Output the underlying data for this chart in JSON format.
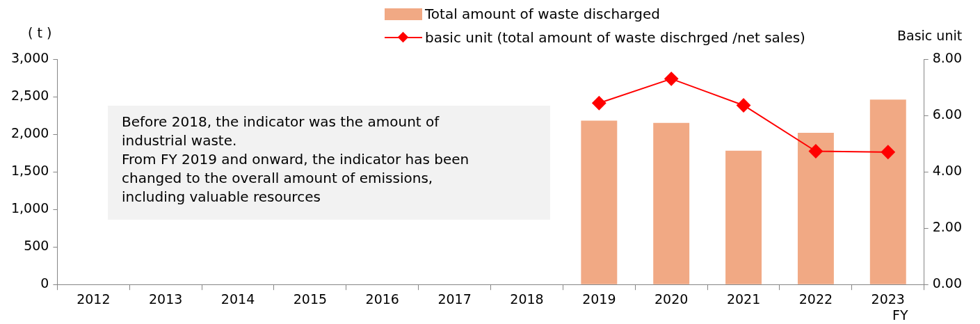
{
  "chart_data": {
    "type": "bar",
    "ylabel": "( t )",
    "y2label": "Basic unit",
    "xlabel": "FY",
    "categories": [
      "2012",
      "2013",
      "2014",
      "2015",
      "2016",
      "2017",
      "2018",
      "2019",
      "2020",
      "2021",
      "2022",
      "2023"
    ],
    "series": [
      {
        "name": "Total amount of waste discharged",
        "color": "#f1a984",
        "values": [
          null,
          null,
          null,
          null,
          null,
          null,
          null,
          2180,
          2150,
          1780,
          2020,
          2460
        ]
      },
      {
        "name": "basic unit (total amount of waste dischrged /net sales)",
        "type": "line",
        "axis": "y2",
        "color": "#ff0000",
        "marker": "diamond",
        "line_style": "solid",
        "values": [
          null,
          null,
          null,
          null,
          null,
          null,
          null,
          6.44,
          7.3,
          6.36,
          4.73,
          4.7
        ]
      }
    ],
    "ylim": [
      0,
      3000
    ],
    "yticks": [
      0,
      {
        "value": 500,
        "label": "500"
      },
      {
        "value": 1000,
        "label": "1,000"
      },
      {
        "value": 1500,
        "label": "1,500"
      },
      {
        "value": 2000,
        "label": "2,000"
      },
      {
        "value": 2500,
        "label": "2,500"
      },
      {
        "value": 3000,
        "label": "3,000"
      }
    ],
    "y2lim": [
      0,
      8
    ],
    "y2ticks": [
      {
        "value": 0,
        "label": "0.00"
      },
      {
        "value": 2,
        "label": "2.00"
      },
      {
        "value": 4,
        "label": "4.00"
      },
      {
        "value": 6,
        "label": "6.00"
      },
      {
        "value": 8,
        "label": "8.00"
      }
    ],
    "grid": false,
    "legend": "top",
    "annotations": [
      "Before 2018, the indicator was the amount of\nindustrial waste.\nFrom FY 2019 and onward, the indicator has been\nchanged to the overall amount of emissions,\nincluding valuable resources"
    ]
  }
}
